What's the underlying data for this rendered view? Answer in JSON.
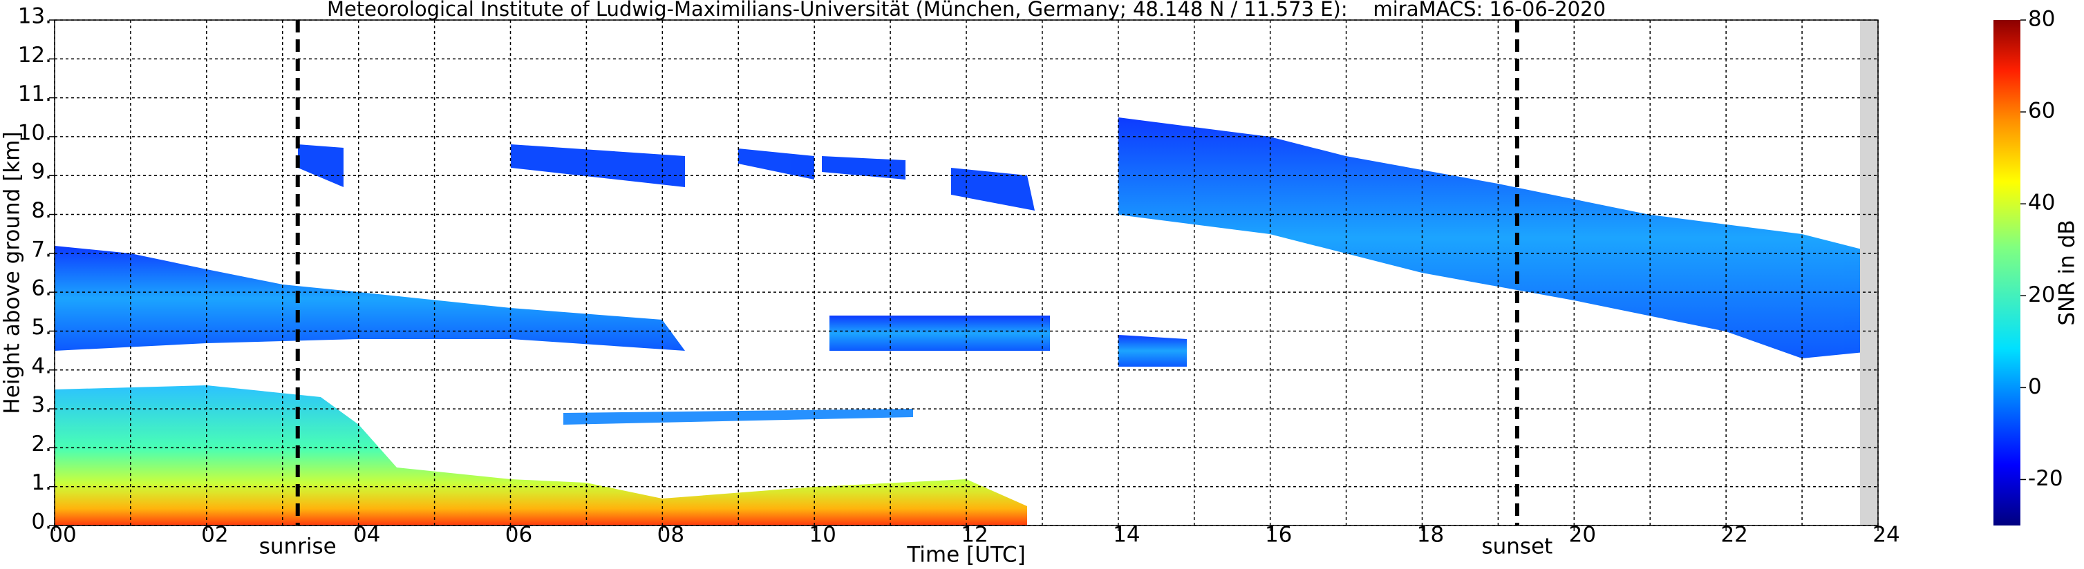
{
  "chart_data": {
    "type": "radar-timeheight",
    "title": "Meteorological Institute of Ludwig-Maximilians-Universität (München, Germany; 48.148 N / 11.573 E):    miraMACS: 16-06-2020",
    "x_label": "Time [UTC]",
    "y_label": "Height above ground [km]",
    "xlim": [
      0,
      24
    ],
    "xticks": [
      {
        "value": 0,
        "label": "00"
      },
      {
        "value": 2,
        "label": "02"
      },
      {
        "value": 4,
        "label": "04"
      },
      {
        "value": 6,
        "label": "06"
      },
      {
        "value": 8,
        "label": "08"
      },
      {
        "value": 10,
        "label": "10"
      },
      {
        "value": 12,
        "label": "12"
      },
      {
        "value": 14,
        "label": "14"
      },
      {
        "value": 16,
        "label": "16"
      },
      {
        "value": 18,
        "label": "18"
      },
      {
        "value": 20,
        "label": "20"
      },
      {
        "value": 22,
        "label": "22"
      },
      {
        "value": 24,
        "label": "24"
      }
    ],
    "xgrid_minor": [
      1,
      3,
      5,
      7,
      9,
      11,
      13,
      15,
      17,
      19,
      21,
      23
    ],
    "ylim": [
      0,
      13
    ],
    "yticks": [
      {
        "value": 0,
        "label": "0."
      },
      {
        "value": 1,
        "label": "1."
      },
      {
        "value": 2,
        "label": "2."
      },
      {
        "value": 3,
        "label": "3."
      },
      {
        "value": 4,
        "label": "4."
      },
      {
        "value": 5,
        "label": "5."
      },
      {
        "value": 6,
        "label": "6."
      },
      {
        "value": 7,
        "label": "7."
      },
      {
        "value": 8,
        "label": "8."
      },
      {
        "value": 9,
        "label": "9."
      },
      {
        "value": 10,
        "label": "10."
      },
      {
        "value": 11,
        "label": "11."
      },
      {
        "value": 12,
        "label": "12."
      },
      {
        "value": 13,
        "label": "13."
      }
    ],
    "grid": true,
    "annotations": [
      {
        "text": "sunrise",
        "x": 3.2
      },
      {
        "text": "sunset",
        "x": 19.25
      }
    ],
    "colorbar": {
      "label": "SNR in dB",
      "lim": [
        -30,
        80
      ],
      "ticks": [
        -20,
        0,
        20,
        40,
        60,
        80
      ]
    }
  }
}
